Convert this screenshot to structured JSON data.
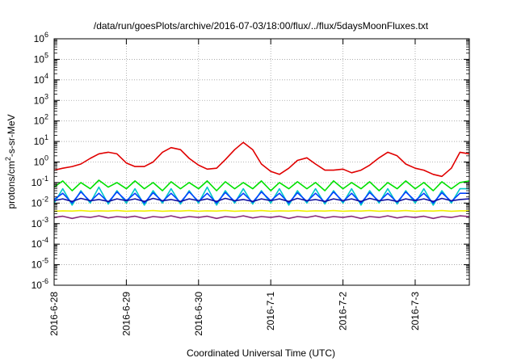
{
  "chart_data": {
    "type": "line",
    "title": "/data/run/goesPlots/archive/2016-07-03/18:00/flux/../flux/5daysMoonFluxes.txt",
    "xlabel": "Coordinated Universal Time (UTC)",
    "ylabel": {
      "prefix": "protons/cm",
      "sup": "2",
      "suffix": "-s-sr-MeV"
    },
    "y_scale": "log",
    "ylim": [
      1e-06,
      1000000.0
    ],
    "y_ticks": [
      {
        "base": "10",
        "exp": "-6",
        "value": 1e-06
      },
      {
        "base": "10",
        "exp": "-5",
        "value": 1e-05
      },
      {
        "base": "10",
        "exp": "-4",
        "value": 0.0001
      },
      {
        "base": "10",
        "exp": "-3",
        "value": 0.001
      },
      {
        "base": "10",
        "exp": "-2",
        "value": 0.01
      },
      {
        "base": "10",
        "exp": "-1",
        "value": 0.1
      },
      {
        "base": "10",
        "exp": "0",
        "value": 1.0
      },
      {
        "base": "10",
        "exp": "1",
        "value": 10.0
      },
      {
        "base": "10",
        "exp": "2",
        "value": 100.0
      },
      {
        "base": "10",
        "exp": "3",
        "value": 1000.0
      },
      {
        "base": "10",
        "exp": "4",
        "value": 10000.0
      },
      {
        "base": "10",
        "exp": "5",
        "value": 100000.0
      },
      {
        "base": "10",
        "exp": "6",
        "value": 1000000.0
      }
    ],
    "x_ticks": [
      {
        "label": "2016-6-28",
        "day": 0
      },
      {
        "label": "2016-6-29",
        "day": 1
      },
      {
        "label": "2016-6-30",
        "day": 2
      },
      {
        "label": "2016-7-1",
        "day": 3
      },
      {
        "label": "2016-7-2",
        "day": 4
      },
      {
        "label": "2016-7-3",
        "day": 5
      }
    ],
    "xlim": [
      "2016-06-28T00:00",
      "2016-07-03T18:00"
    ],
    "grid": true,
    "legend": "none",
    "series": [
      {
        "color": "#e00000",
        "x": [
          0,
          0.12,
          0.25,
          0.37,
          0.5,
          0.62,
          0.75,
          0.87,
          1,
          1.12,
          1.25,
          1.37,
          1.5,
          1.62,
          1.75,
          1.87,
          2,
          2.12,
          2.25,
          2.37,
          2.5,
          2.62,
          2.75,
          2.87,
          3,
          3.12,
          3.25,
          3.37,
          3.5,
          3.62,
          3.75,
          3.87,
          4,
          4.12,
          4.25,
          4.37,
          4.5,
          4.62,
          4.75,
          4.87,
          5,
          5.12,
          5.25,
          5.37,
          5.5,
          5.62,
          5.75
        ],
        "y": [
          0.4,
          0.5,
          0.6,
          0.8,
          1.5,
          2.5,
          3,
          2.5,
          0.9,
          0.6,
          0.6,
          1,
          3,
          5,
          4,
          1.5,
          0.7,
          0.45,
          0.5,
          1.3,
          4,
          9,
          4,
          0.8,
          0.35,
          0.25,
          0.5,
          1.2,
          1.6,
          0.8,
          0.4,
          0.4,
          0.45,
          0.3,
          0.4,
          0.7,
          1.6,
          3,
          2,
          0.8,
          0.5,
          0.4,
          0.25,
          0.2,
          0.5,
          3,
          2.5
        ]
      },
      {
        "color": "#00e000",
        "x": [
          0,
          0.12,
          0.25,
          0.37,
          0.5,
          0.62,
          0.75,
          0.87,
          1,
          1.12,
          1.25,
          1.37,
          1.5,
          1.62,
          1.75,
          1.87,
          2,
          2.12,
          2.25,
          2.37,
          2.5,
          2.62,
          2.75,
          2.87,
          3,
          3.12,
          3.25,
          3.37,
          3.5,
          3.62,
          3.75,
          3.87,
          4,
          4.12,
          4.25,
          4.37,
          4.5,
          4.62,
          4.75,
          4.87,
          5,
          5.12,
          5.25,
          5.37,
          5.5,
          5.62,
          5.75
        ],
        "y": [
          0.06,
          0.12,
          0.04,
          0.1,
          0.05,
          0.13,
          0.06,
          0.1,
          0.05,
          0.12,
          0.05,
          0.1,
          0.04,
          0.11,
          0.05,
          0.1,
          0.05,
          0.12,
          0.04,
          0.11,
          0.05,
          0.1,
          0.05,
          0.12,
          0.04,
          0.1,
          0.05,
          0.11,
          0.05,
          0.1,
          0.04,
          0.12,
          0.05,
          0.1,
          0.05,
          0.11,
          0.04,
          0.1,
          0.05,
          0.12,
          0.05,
          0.1,
          0.04,
          0.11,
          0.05,
          0.1,
          0.12
        ]
      },
      {
        "color": "#00c8c8",
        "x": [
          0,
          0.12,
          0.25,
          0.37,
          0.5,
          0.62,
          0.75,
          0.87,
          1,
          1.12,
          1.25,
          1.37,
          1.5,
          1.62,
          1.75,
          1.87,
          2,
          2.12,
          2.25,
          2.37,
          2.5,
          2.62,
          2.75,
          2.87,
          3,
          3.12,
          3.25,
          3.37,
          3.5,
          3.62,
          3.75,
          3.87,
          4,
          4.12,
          4.25,
          4.37,
          4.5,
          4.62,
          4.75,
          4.87,
          5,
          5.12,
          5.25,
          5.37,
          5.5,
          5.62,
          5.75
        ],
        "y": [
          0.01,
          0.05,
          0.008,
          0.04,
          0.01,
          0.06,
          0.009,
          0.04,
          0.01,
          0.05,
          0.008,
          0.04,
          0.01,
          0.05,
          0.009,
          0.04,
          0.01,
          0.06,
          0.008,
          0.04,
          0.01,
          0.05,
          0.009,
          0.04,
          0.01,
          0.05,
          0.008,
          0.04,
          0.01,
          0.05,
          0.009,
          0.04,
          0.01,
          0.05,
          0.008,
          0.04,
          0.01,
          0.05,
          0.009,
          0.04,
          0.01,
          0.05,
          0.008,
          0.04,
          0.01,
          0.05,
          0.05
        ]
      },
      {
        "color": "#0040ff",
        "x": [
          0,
          0.12,
          0.25,
          0.37,
          0.5,
          0.62,
          0.75,
          0.87,
          1,
          1.12,
          1.25,
          1.37,
          1.5,
          1.62,
          1.75,
          1.87,
          2,
          2.12,
          2.25,
          2.37,
          2.5,
          2.62,
          2.75,
          2.87,
          3,
          3.12,
          3.25,
          3.37,
          3.5,
          3.62,
          3.75,
          3.87,
          4,
          4.12,
          4.25,
          4.37,
          4.5,
          4.62,
          4.75,
          4.87,
          5,
          5.12,
          5.25,
          5.37,
          5.5,
          5.62,
          5.75
        ],
        "y": [
          0.015,
          0.03,
          0.01,
          0.035,
          0.012,
          0.03,
          0.011,
          0.035,
          0.013,
          0.03,
          0.01,
          0.032,
          0.012,
          0.03,
          0.011,
          0.035,
          0.012,
          0.03,
          0.01,
          0.033,
          0.012,
          0.03,
          0.011,
          0.035,
          0.013,
          0.03,
          0.01,
          0.032,
          0.012,
          0.03,
          0.011,
          0.035,
          0.012,
          0.03,
          0.01,
          0.033,
          0.012,
          0.03,
          0.011,
          0.035,
          0.013,
          0.03,
          0.01,
          0.032,
          0.012,
          0.03,
          0.03
        ]
      },
      {
        "color": "#1010a0",
        "x": [
          0,
          0.12,
          0.25,
          0.37,
          0.5,
          0.62,
          0.75,
          0.87,
          1,
          1.12,
          1.25,
          1.37,
          1.5,
          1.62,
          1.75,
          1.87,
          2,
          2.12,
          2.25,
          2.37,
          2.5,
          2.62,
          2.75,
          2.87,
          3,
          3.12,
          3.25,
          3.37,
          3.5,
          3.62,
          3.75,
          3.87,
          4,
          4.12,
          4.25,
          4.37,
          4.5,
          4.62,
          4.75,
          4.87,
          5,
          5.12,
          5.25,
          5.37,
          5.5,
          5.62,
          5.75
        ],
        "y": [
          0.013,
          0.016,
          0.012,
          0.017,
          0.013,
          0.015,
          0.012,
          0.016,
          0.013,
          0.016,
          0.012,
          0.017,
          0.013,
          0.015,
          0.012,
          0.016,
          0.013,
          0.016,
          0.012,
          0.017,
          0.013,
          0.015,
          0.012,
          0.016,
          0.013,
          0.016,
          0.012,
          0.017,
          0.013,
          0.015,
          0.012,
          0.016,
          0.013,
          0.016,
          0.012,
          0.017,
          0.013,
          0.015,
          0.012,
          0.016,
          0.013,
          0.016,
          0.012,
          0.017,
          0.013,
          0.015,
          0.016
        ]
      },
      {
        "color": "#f0f000",
        "x": [
          0,
          0.12,
          0.25,
          0.37,
          0.5,
          0.62,
          0.75,
          0.87,
          1,
          1.12,
          1.25,
          1.37,
          1.5,
          1.62,
          1.75,
          1.87,
          2,
          2.12,
          2.25,
          2.37,
          2.5,
          2.62,
          2.75,
          2.87,
          3,
          3.12,
          3.25,
          3.37,
          3.5,
          3.62,
          3.75,
          3.87,
          4,
          4.12,
          4.25,
          4.37,
          4.5,
          4.62,
          4.75,
          4.87,
          5,
          5.12,
          5.25,
          5.37,
          5.5,
          5.62,
          5.75
        ],
        "y": [
          0.004,
          0.0042,
          0.0041,
          0.0043,
          0.004,
          0.0042,
          0.0041,
          0.0043,
          0.004,
          0.0042,
          0.0041,
          0.0043,
          0.004,
          0.0042,
          0.0041,
          0.0043,
          0.004,
          0.0042,
          0.0041,
          0.0043,
          0.004,
          0.0042,
          0.0041,
          0.0043,
          0.004,
          0.0042,
          0.0041,
          0.0043,
          0.004,
          0.0042,
          0.0041,
          0.0043,
          0.004,
          0.0042,
          0.0041,
          0.0043,
          0.004,
          0.0042,
          0.0041,
          0.0043,
          0.004,
          0.0042,
          0.0041,
          0.0043,
          0.004,
          0.0042,
          0.0042
        ]
      },
      {
        "color": "#8a2a7a",
        "x": [
          0,
          0.12,
          0.25,
          0.37,
          0.5,
          0.62,
          0.75,
          0.87,
          1,
          1.12,
          1.25,
          1.37,
          1.5,
          1.62,
          1.75,
          1.87,
          2,
          2.12,
          2.25,
          2.37,
          2.5,
          2.62,
          2.75,
          2.87,
          3,
          3.12,
          3.25,
          3.37,
          3.5,
          3.62,
          3.75,
          3.87,
          4,
          4.12,
          4.25,
          4.37,
          4.5,
          4.62,
          4.75,
          4.87,
          5,
          5.12,
          5.25,
          5.37,
          5.5,
          5.62,
          5.75
        ],
        "y": [
          0.002,
          0.0023,
          0.0018,
          0.0022,
          0.002,
          0.0024,
          0.0019,
          0.0022,
          0.002,
          0.0023,
          0.0018,
          0.0022,
          0.002,
          0.0024,
          0.0019,
          0.0022,
          0.002,
          0.0023,
          0.0018,
          0.0022,
          0.002,
          0.0024,
          0.0019,
          0.0022,
          0.002,
          0.0023,
          0.0018,
          0.0022,
          0.002,
          0.0024,
          0.0019,
          0.0022,
          0.002,
          0.0023,
          0.0018,
          0.0022,
          0.002,
          0.0024,
          0.0019,
          0.0022,
          0.002,
          0.0023,
          0.0018,
          0.0022,
          0.002,
          0.0024,
          0.0022
        ]
      }
    ]
  }
}
